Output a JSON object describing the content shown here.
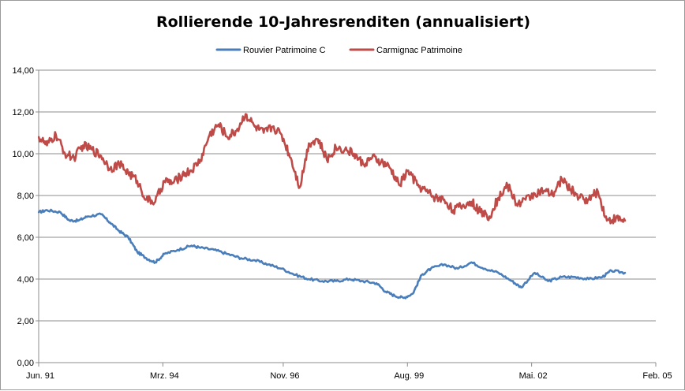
{
  "chart_data": {
    "type": "line",
    "title": "Rollierende 10-Jahresrenditen (annualisiert)",
    "xlabel": "",
    "ylabel": "",
    "ylim": [
      0,
      14
    ],
    "y_ticks": [
      "0,00",
      "2,00",
      "4,00",
      "6,00",
      "8,00",
      "10,00",
      "12,00",
      "14,00"
    ],
    "y_tick_values": [
      0,
      2,
      4,
      6,
      8,
      10,
      12,
      14
    ],
    "x_tick_labels": [
      "Jun. 91",
      "Mrz. 94",
      "Nov. 96",
      "Aug. 99",
      "Mai. 02",
      "Feb. 05"
    ],
    "x_tick_values": [
      1991.417,
      1994.167,
      1996.833,
      1999.583,
      2002.333,
      2005.083
    ],
    "xlim": [
      1991.417,
      2005.083
    ],
    "grid": true,
    "legend_position": "top",
    "series": [
      {
        "name": "Rouvier Patrimoine C",
        "color": "#4a7ebb",
        "x": [
          1991.42,
          1991.6,
          1991.9,
          1992.1,
          1992.3,
          1992.5,
          1992.8,
          1993.0,
          1993.2,
          1993.4,
          1993.6,
          1993.8,
          1994.0,
          1994.2,
          1994.5,
          1994.8,
          1995.0,
          1995.3,
          1995.6,
          1995.9,
          1996.2,
          1996.5,
          1996.8,
          1997.1,
          1997.4,
          1997.7,
          1998.0,
          1998.3,
          1998.6,
          1998.9,
          1999.1,
          1999.3,
          1999.5,
          1999.7,
          1999.9,
          2000.1,
          2000.4,
          2000.7,
          2001.0,
          2001.3,
          2001.6,
          2001.9,
          2002.1,
          2002.4,
          2002.7,
          2003.0,
          2003.3,
          2003.6,
          2003.9,
          2004.1,
          2004.4
        ],
        "values": [
          7.2,
          7.3,
          7.2,
          6.8,
          6.8,
          7.0,
          7.1,
          6.7,
          6.3,
          6.0,
          5.3,
          5.0,
          4.8,
          5.2,
          5.4,
          5.6,
          5.5,
          5.4,
          5.2,
          5.0,
          4.9,
          4.7,
          4.5,
          4.2,
          4.0,
          3.9,
          3.9,
          4.0,
          3.9,
          3.8,
          3.4,
          3.2,
          3.1,
          3.3,
          4.2,
          4.5,
          4.7,
          4.5,
          4.8,
          4.5,
          4.3,
          3.9,
          3.6,
          4.3,
          3.9,
          4.1,
          4.1,
          4.0,
          4.1,
          4.4,
          4.3
        ]
      },
      {
        "name": "Carmignac Patrimoine",
        "color": "#be4b48",
        "x": [
          1991.42,
          1991.6,
          1991.8,
          1992.0,
          1992.2,
          1992.4,
          1992.6,
          1992.8,
          1993.0,
          1993.2,
          1993.4,
          1993.6,
          1993.8,
          1994.0,
          1994.2,
          1994.4,
          1994.6,
          1994.8,
          1995.0,
          1995.2,
          1995.4,
          1995.6,
          1995.8,
          1996.0,
          1996.2,
          1996.4,
          1996.6,
          1996.8,
          1997.0,
          1997.2,
          1997.4,
          1997.6,
          1997.8,
          1998.0,
          1998.2,
          1998.4,
          1998.6,
          1998.8,
          1999.0,
          1999.2,
          1999.4,
          1999.6,
          1999.8,
          2000.0,
          2000.2,
          2000.4,
          2000.6,
          2000.8,
          2001.0,
          2001.2,
          2001.4,
          2001.6,
          2001.8,
          2002.0,
          2002.2,
          2002.4,
          2002.6,
          2002.8,
          2003.0,
          2003.2,
          2003.4,
          2003.6,
          2003.8,
          2004.0,
          2004.2,
          2004.4
        ],
        "values": [
          10.8,
          10.4,
          10.9,
          10.0,
          9.8,
          10.4,
          10.2,
          9.9,
          9.3,
          9.5,
          9.1,
          8.7,
          7.8,
          7.7,
          8.7,
          8.6,
          9.0,
          9.2,
          9.7,
          10.9,
          11.4,
          10.8,
          11.1,
          11.9,
          11.3,
          11.0,
          11.3,
          10.9,
          9.8,
          8.4,
          10.5,
          10.7,
          9.7,
          10.3,
          10.2,
          10.0,
          9.5,
          9.8,
          9.6,
          9.3,
          8.5,
          9.2,
          8.5,
          8.2,
          7.9,
          7.8,
          7.3,
          7.5,
          7.7,
          7.2,
          7.0,
          7.9,
          8.5,
          7.6,
          7.8,
          8.1,
          8.2,
          8.0,
          8.8,
          8.3,
          7.9,
          7.8,
          8.2,
          6.8,
          6.9,
          6.8
        ]
      }
    ]
  }
}
